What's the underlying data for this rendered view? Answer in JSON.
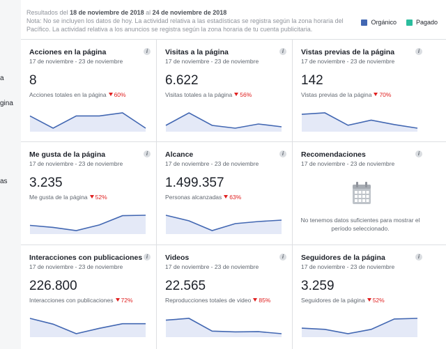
{
  "sidebar": {
    "fragments": [
      "a",
      "gina",
      "as"
    ]
  },
  "header": {
    "results_prefix": "Resultados del",
    "date_from": "18 de noviembre de 2018",
    "date_connector": "al",
    "date_to": "24 de noviembre de 2018",
    "note_line1": "Nota: No se incluyen los datos de hoy. La actividad relativa a las estadísticas se registra según la zona horaria del",
    "note_line2": "Pacífico. La actividad relativa a los anuncios se registra según la zona horaria de tu cuenta publicitaria."
  },
  "legend": [
    {
      "label": "Orgánico",
      "color": "#4267b2"
    },
    {
      "label": "Pagado",
      "color": "#2bbd9e"
    }
  ],
  "cards": [
    {
      "title": "Acciones en la página",
      "date": "17 de noviembre - 23 de noviembre",
      "value": "8",
      "sub": "Acciones totales en la página",
      "change": "60%",
      "series": [
        2,
        0,
        2,
        2,
        2.5,
        0
      ]
    },
    {
      "title": "Visitas a la página",
      "date": "17 de noviembre - 23 de noviembre",
      "value": "6.622",
      "sub": "Visitas totales a la página",
      "change": "56%",
      "series": [
        1100,
        1550,
        1100,
        1000,
        1150,
        1050
      ]
    },
    {
      "title": "Vistas previas de la página",
      "date": "17 de noviembre - 23 de noviembre",
      "value": "142",
      "sub": "Vistas previas de la página",
      "change": "70%",
      "series": [
        40,
        42,
        25,
        32,
        26,
        21
      ]
    },
    {
      "title": "Me gusta de la página",
      "date": "17 de noviembre - 23 de noviembre",
      "value": "3.235",
      "sub": "Me gusta de la página",
      "change": "52%",
      "series": [
        520,
        470,
        390,
        530,
        760,
        770
      ]
    },
    {
      "title": "Alcance",
      "date": "17 de noviembre - 23 de noviembre",
      "value": "1.499.357",
      "sub": "Personas alcanzadas",
      "change": "63%",
      "series": [
        270000,
        230000,
        160000,
        210000,
        225000,
        235000
      ]
    },
    {
      "title": "Recomendaciones",
      "date": "17 de noviembre - 23 de noviembre",
      "empty": true,
      "empty_text": "No tenemos datos suficientes para mostrar el período seleccionado."
    },
    {
      "title": "Interacciones con publicaciones",
      "date": "17 de noviembre - 23 de noviembre",
      "value": "226.800",
      "sub": "Interacciones con publicaciones",
      "change": "72%",
      "series": [
        54000,
        40000,
        17000,
        30000,
        41000,
        41000
      ]
    },
    {
      "title": "Videos",
      "date": "17 de noviembre - 23 de noviembre",
      "value": "22.565",
      "sub": "Reproducciones totales de video",
      "change": "85%",
      "series": [
        5800,
        6500,
        1500,
        1200,
        1300,
        500
      ]
    },
    {
      "title": "Seguidores de la página",
      "date": "17 de noviembre - 23 de noviembre",
      "value": "3.259",
      "sub": "Seguidores de la página",
      "change": "52%",
      "series": [
        600,
        560,
        420,
        560,
        900,
        920
      ]
    }
  ]
}
